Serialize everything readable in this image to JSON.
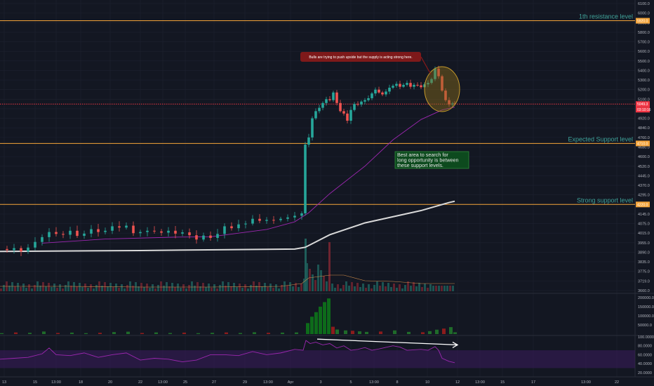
{
  "chart_data": {
    "type": "candlestick",
    "price_axis": {
      "ticks": [
        "6100.0",
        "6000.0",
        "5900.0",
        "5800.0",
        "5700.0",
        "5600.0",
        "5500.0",
        "5400.0",
        "5300.0",
        "5200.0",
        "5100.0",
        "5000.0",
        "4920.0",
        "4840.0",
        "4760.0",
        "4680.0",
        "4600.0",
        "4520.0",
        "4445.0",
        "4370.0",
        "4295.0",
        "4220.0",
        "4145.0",
        "4075.0",
        "4015.0",
        "3955.0",
        "3890.0",
        "3835.0",
        "3775.0",
        "3719.0",
        "3660.0"
      ],
      "ylim": [
        3660,
        6150
      ]
    },
    "time_axis": {
      "ticks": [
        "13",
        "15",
        "13:00",
        "18",
        "20",
        "22",
        "13:00",
        "25",
        "27",
        "29",
        "13:00",
        "Apr",
        "3",
        "5",
        "13:00",
        "8",
        "10",
        "12",
        "13:00",
        "15",
        "17",
        "13:00",
        "22"
      ]
    },
    "levels": [
      {
        "name": "1th resistance level",
        "price": 5920.0,
        "tag": "5920.0",
        "color": "#f4a43a",
        "line": "solid"
      },
      {
        "name": "Expected Support level",
        "price": 4710.0,
        "tag": "4710.0",
        "color": "#f4a43a",
        "line": "solid"
      },
      {
        "name": "Strong support level",
        "price": 4220.0,
        "tag": "4220.0",
        "color": "#f4a43a",
        "line": "solid"
      },
      {
        "name": "",
        "price": 5049.3,
        "tag": "5049.3",
        "color": "#f23645",
        "line": "dotted"
      }
    ],
    "current_price": {
      "price": "5049.3",
      "countdown": "03:10:16"
    },
    "annotations": [
      {
        "text": "Bulls are trying to push upside but the supply is acting strong here.",
        "kind": "callout",
        "color": "#8b1a1a"
      },
      {
        "text": "Best area to search for long opportunity is between these support levels.",
        "kind": "note",
        "color": "#0d4a1e"
      }
    ],
    "moving_averages": [
      {
        "color": "#d9d9d9",
        "points": [
          [
            0,
            3896
          ],
          [
            200,
            3902
          ],
          [
            420,
            3912
          ],
          [
            435,
            3924
          ],
          [
            470,
            4005
          ],
          [
            520,
            4080
          ],
          [
            600,
            4172
          ],
          [
            640,
            4235
          ],
          [
            648,
            4245
          ]
        ]
      },
      {
        "color": "#9c27b0",
        "points": [
          [
            60,
            3952
          ],
          [
            150,
            3978
          ],
          [
            250,
            3990
          ],
          [
            300,
            3992
          ],
          [
            380,
            4038
          ],
          [
            420,
            4088
          ],
          [
            440,
            4155
          ],
          [
            470,
            4305
          ],
          [
            520,
            4520
          ],
          [
            560,
            4740
          ],
          [
            600,
            4910
          ],
          [
            630,
            4990
          ],
          [
            648,
            5018
          ]
        ]
      }
    ],
    "price_path": [
      [
        0,
        3912
      ],
      [
        10,
        3905
      ],
      [
        20,
        3918
      ],
      [
        30,
        3895
      ],
      [
        40,
        3922
      ],
      [
        50,
        3960
      ],
      [
        60,
        3990
      ],
      [
        70,
        4022
      ],
      [
        80,
        4010
      ],
      [
        90,
        4005
      ],
      [
        100,
        4030
      ],
      [
        110,
        3998
      ],
      [
        120,
        4012
      ],
      [
        130,
        4040
      ],
      [
        140,
        4022
      ],
      [
        150,
        4030
      ],
      [
        160,
        4058
      ],
      [
        170,
        4050
      ],
      [
        180,
        4062
      ],
      [
        190,
        4015
      ],
      [
        200,
        4022
      ],
      [
        210,
        4030
      ],
      [
        220,
        4026
      ],
      [
        230,
        4018
      ],
      [
        240,
        4030
      ],
      [
        250,
        4012
      ],
      [
        260,
        4020
      ],
      [
        270,
        4002
      ],
      [
        280,
        3975
      ],
      [
        290,
        4000
      ],
      [
        300,
        3985
      ],
      [
        310,
        4010
      ],
      [
        320,
        4058
      ],
      [
        330,
        4046
      ],
      [
        340,
        4070
      ],
      [
        350,
        4075
      ],
      [
        360,
        4110
      ],
      [
        370,
        4095
      ],
      [
        380,
        4102
      ],
      [
        390,
        4100
      ],
      [
        400,
        4110
      ],
      [
        410,
        4120
      ],
      [
        420,
        4132
      ],
      [
        430,
        4150
      ],
      [
        435,
        4700
      ],
      [
        440,
        4760
      ],
      [
        445,
        4920
      ],
      [
        450,
        4980
      ],
      [
        455,
        5010
      ],
      [
        460,
        5060
      ],
      [
        465,
        5100
      ],
      [
        470,
        5090
      ],
      [
        475,
        5170
      ],
      [
        480,
        5060
      ],
      [
        485,
        4980
      ],
      [
        490,
        4960
      ],
      [
        495,
        4900
      ],
      [
        500,
        4990
      ],
      [
        505,
        5050
      ],
      [
        510,
        5045
      ],
      [
        515,
        5075
      ],
      [
        520,
        5090
      ],
      [
        525,
        5110
      ],
      [
        530,
        5160
      ],
      [
        535,
        5200
      ],
      [
        540,
        5170
      ],
      [
        545,
        5150
      ],
      [
        550,
        5180
      ],
      [
        555,
        5220
      ],
      [
        560,
        5240
      ],
      [
        565,
        5260
      ],
      [
        570,
        5230
      ],
      [
        575,
        5250
      ],
      [
        580,
        5270
      ],
      [
        585,
        5230
      ],
      [
        590,
        5250
      ],
      [
        595,
        5245
      ],
      [
        600,
        5225
      ],
      [
        605,
        5255
      ],
      [
        610,
        5270
      ],
      [
        615,
        5310
      ],
      [
        620,
        5420
      ],
      [
        625,
        5340
      ],
      [
        630,
        5190
      ],
      [
        635,
        5090
      ],
      [
        640,
        5045
      ],
      [
        645,
        5055
      ],
      [
        648,
        5049
      ]
    ],
    "volume_panel": {
      "ticks": [
        "200000.0",
        "150000.0",
        "100000.0",
        "50000.0"
      ],
      "ylim": [
        0,
        215000
      ],
      "bars": [
        {
          "x": 0,
          "v": 5000
        },
        {
          "x": 20,
          "v": 9000
        },
        {
          "x": 40,
          "v": 7000
        },
        {
          "x": 60,
          "v": 14000
        },
        {
          "x": 80,
          "v": 6000
        },
        {
          "x": 100,
          "v": 8000
        },
        {
          "x": 120,
          "v": 5000
        },
        {
          "x": 140,
          "v": 7000
        },
        {
          "x": 160,
          "v": 11000
        },
        {
          "x": 180,
          "v": 13000
        },
        {
          "x": 200,
          "v": 6000
        },
        {
          "x": 220,
          "v": 9000
        },
        {
          "x": 240,
          "v": 6000
        },
        {
          "x": 260,
          "v": 8000
        },
        {
          "x": 280,
          "v": 5000
        },
        {
          "x": 300,
          "v": 7000
        },
        {
          "x": 320,
          "v": 9000
        },
        {
          "x": 340,
          "v": 6000
        },
        {
          "x": 360,
          "v": 10000
        },
        {
          "x": 380,
          "v": 7000
        },
        {
          "x": 400,
          "v": 8000
        },
        {
          "x": 420,
          "v": 9000
        },
        {
          "x": 436,
          "v": 60000
        },
        {
          "x": 442,
          "v": 95000
        },
        {
          "x": 448,
          "v": 120000
        },
        {
          "x": 454,
          "v": 150000
        },
        {
          "x": 460,
          "v": 175000
        },
        {
          "x": 466,
          "v": 195000
        },
        {
          "x": 472,
          "v": 40000
        },
        {
          "x": 478,
          "v": 25000
        },
        {
          "x": 490,
          "v": 20000
        },
        {
          "x": 500,
          "v": 18000
        },
        {
          "x": 510,
          "v": 15000
        },
        {
          "x": 520,
          "v": 12000
        },
        {
          "x": 540,
          "v": 14000
        },
        {
          "x": 560,
          "v": 20000
        },
        {
          "x": 580,
          "v": 12000
        },
        {
          "x": 600,
          "v": 10000
        },
        {
          "x": 610,
          "v": 16000
        },
        {
          "x": 620,
          "v": 24000
        },
        {
          "x": 630,
          "v": 30000
        },
        {
          "x": 640,
          "v": 38000
        },
        {
          "x": 646,
          "v": 10000
        }
      ]
    },
    "rsi_panel": {
      "ticks": [
        "100.0000",
        "80.0000",
        "60.0000",
        "40.0000",
        "20.0000"
      ],
      "ylim": [
        15,
        100
      ],
      "band": [
        30,
        70
      ],
      "points": [
        [
          0,
          50
        ],
        [
          20,
          52
        ],
        [
          40,
          54
        ],
        [
          60,
          62
        ],
        [
          70,
          75
        ],
        [
          80,
          60
        ],
        [
          100,
          58
        ],
        [
          120,
          64
        ],
        [
          140,
          54
        ],
        [
          160,
          60
        ],
        [
          180,
          64
        ],
        [
          200,
          48
        ],
        [
          220,
          52
        ],
        [
          240,
          50
        ],
        [
          260,
          44
        ],
        [
          280,
          48
        ],
        [
          300,
          60
        ],
        [
          320,
          60
        ],
        [
          340,
          58
        ],
        [
          360,
          67
        ],
        [
          380,
          60
        ],
        [
          400,
          64
        ],
        [
          420,
          72
        ],
        [
          432,
          70
        ],
        [
          436,
          92
        ],
        [
          442,
          85
        ],
        [
          450,
          88
        ],
        [
          460,
          82
        ],
        [
          470,
          85
        ],
        [
          480,
          75
        ],
        [
          490,
          80
        ],
        [
          500,
          70
        ],
        [
          510,
          72
        ],
        [
          520,
          76
        ],
        [
          530,
          70
        ],
        [
          540,
          73
        ],
        [
          560,
          80
        ],
        [
          570,
          77
        ],
        [
          580,
          70
        ],
        [
          600,
          72
        ],
        [
          610,
          70
        ],
        [
          620,
          78
        ],
        [
          625,
          70
        ],
        [
          630,
          52
        ],
        [
          640,
          45
        ],
        [
          648,
          42
        ]
      ]
    },
    "trend_arrow": {
      "from": [
        452,
        95
      ],
      "to": [
        652,
        82
      ]
    }
  }
}
